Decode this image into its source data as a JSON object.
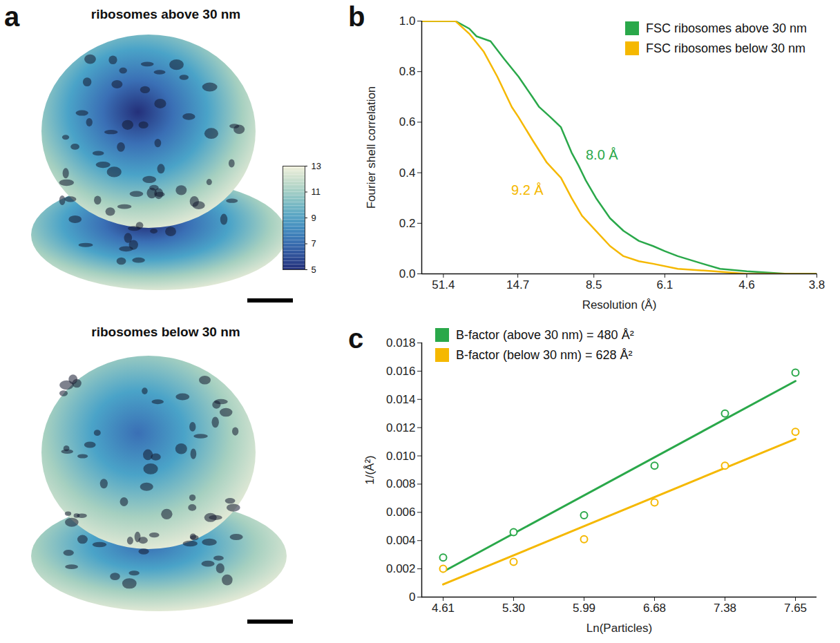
{
  "chart_data": [
    {
      "type": "density_map",
      "panel_label": "a",
      "titles": [
        "ribosomes above 30 nm",
        "ribosomes below 30 nm"
      ],
      "colorbar": {
        "range": [
          5,
          13
        ],
        "ticks": [
          5,
          7,
          9,
          11,
          13
        ]
      }
    },
    {
      "type": "line",
      "panel_label": "b",
      "x_label": "Resolution (Å)",
      "y_label": "Fourier shell correlation",
      "xlim": [
        188,
        3.8
      ],
      "xticks": [
        51.4,
        14.7,
        8.5,
        6.1,
        4.6,
        3.8
      ],
      "ylim": [
        0,
        1
      ],
      "yticks": [
        {
          "value": 0,
          "label": "0.0"
        },
        {
          "value": 0.2,
          "label": "0.2"
        },
        {
          "value": 0.4,
          "label": "0.4"
        },
        {
          "value": 0.6,
          "label": "0.6"
        },
        {
          "value": 0.8,
          "label": "0.8"
        },
        {
          "value": 1,
          "label": "1.0"
        }
      ],
      "legend": "top-right",
      "series": [
        {
          "name": "FSC ribosomes above 30 nm",
          "color": "#2aa84a",
          "x": [
            188,
            36.6,
            27.5,
            24.4,
            19.9,
            16.9,
            14.6,
            12.9,
            12.2,
            11.2,
            10.4,
            9.7,
            9.3,
            8.9,
            8.4,
            7.8,
            7.3,
            6.8,
            6.4,
            6.1,
            5.8,
            5.3,
            5.0,
            4.6,
            4.1,
            3.8
          ],
          "values": [
            1,
            1,
            0.97,
            0.94,
            0.92,
            0.85,
            0.78,
            0.7,
            0.66,
            0.62,
            0.58,
            0.48,
            0.43,
            0.37,
            0.3,
            0.22,
            0.17,
            0.13,
            0.11,
            0.09,
            0.07,
            0.04,
            0.02,
            0.01,
            0,
            0
          ]
        },
        {
          "name": "FSC ribosomes below 30 nm",
          "color": "#f5b800",
          "x": [
            188,
            36.6,
            27.5,
            21.9,
            18.3,
            15.6,
            14.6,
            12.9,
            11.5,
            10.4,
            9.7,
            9.1,
            8.4,
            7.8,
            7.3,
            6.8,
            6.4,
            5.8,
            5.1,
            4.6,
            3.8
          ],
          "values": [
            1,
            1,
            0.95,
            0.88,
            0.78,
            0.66,
            0.62,
            0.53,
            0.44,
            0.38,
            0.3,
            0.23,
            0.17,
            0.11,
            0.07,
            0.05,
            0.04,
            0.02,
            0.01,
            0,
            0
          ]
        }
      ],
      "annotations": [
        {
          "text": "8.0 Å",
          "x": 8.9,
          "y": 0.47,
          "color": "#2aa84a"
        },
        {
          "text": "9.2 Å",
          "x": 11.8,
          "y": 0.33,
          "color": "#f5b800"
        }
      ]
    },
    {
      "type": "scatter",
      "panel_label": "c",
      "x_label": "Ln(Particles)",
      "y_label": "1/(Å²)",
      "categories": [
        "4.61",
        "5.30",
        "5.99",
        "6.68",
        "7.38",
        "7.65"
      ],
      "ylim": [
        0,
        0.018
      ],
      "yticks": [
        0,
        0.002,
        0.004,
        0.006,
        0.008,
        {
          "value": 0.01,
          "label": "0.010"
        },
        0.012,
        0.014,
        0.016,
        0.018
      ],
      "legend": "top-left",
      "marker": "circle",
      "series": [
        {
          "name": "B-factor (above 30 nm) = 480 Å²",
          "color": "#2aa84a",
          "values": [
            0.0028,
            0.0046,
            0.0058,
            0.0093,
            0.013,
            0.0159
          ],
          "fit": {
            "x": [
              "4.61",
              "7.65"
            ],
            "values": [
              0.0018,
              0.0153
            ]
          }
        },
        {
          "name": "B-factor (below 30 nm) = 628 Å²",
          "color": "#f5b800",
          "values": [
            0.002,
            0.0025,
            0.0041,
            0.0067,
            0.0093,
            0.0117
          ],
          "fit": {
            "x": [
              "4.61",
              "7.65"
            ],
            "values": [
              0.0009,
              0.0112
            ]
          }
        }
      ]
    }
  ]
}
